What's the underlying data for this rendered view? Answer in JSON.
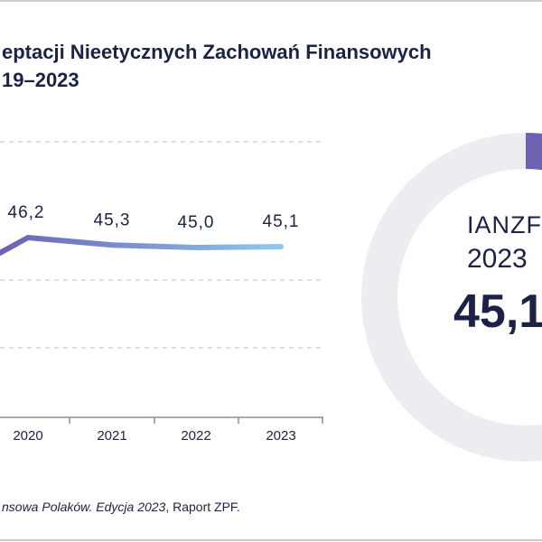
{
  "title_lines": [
    "eptacji Nieetycznych Zachowań Finansowych",
    "19–2023"
  ],
  "source": {
    "italic": "nsowa Polaków. Edycja 2023",
    "rest": ", Raport ZPF."
  },
  "colors": {
    "line_start": "#6b62b2",
    "line_end": "#8ec8ef",
    "grid": "#c9c9cf",
    "axis": "#8e8e96",
    "text": "#1b2245",
    "donut_track": "#ececf1",
    "donut_fill": "#6b62b2"
  },
  "chart_data": [
    {
      "type": "line",
      "x": [
        "2020",
        "2021",
        "2022",
        "2023"
      ],
      "series": [
        {
          "values": [
            46.2,
            45.3,
            45.0,
            45.1
          ]
        }
      ],
      "data_labels": [
        "46,2",
        "45,3",
        "45,0",
        "45,1"
      ],
      "grid": true
    },
    {
      "type": "pie",
      "label": "IANZF",
      "year": "2023",
      "value_label": "45,1",
      "value": 45.1
    }
  ]
}
